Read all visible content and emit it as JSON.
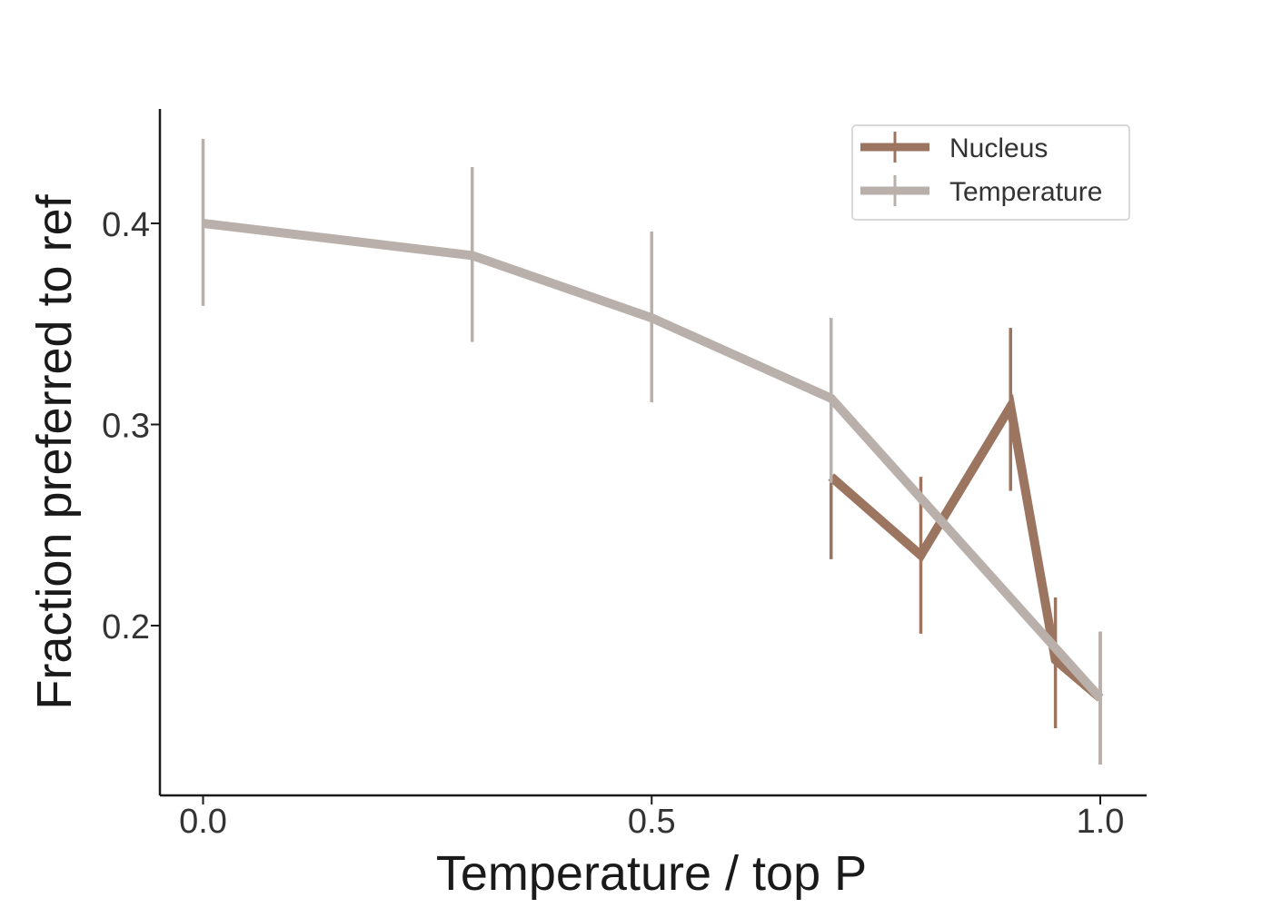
{
  "chart_data": {
    "type": "line",
    "title": "",
    "xlabel": "Temperature / top P",
    "ylabel": "Fraction preferred to ref",
    "xlim": [
      -0.05,
      1.05
    ],
    "ylim": [
      0.12,
      0.46
    ],
    "xticks": [
      0.0,
      0.5,
      1.0
    ],
    "xtick_labels": [
      "0.0",
      "0.5",
      "1.0"
    ],
    "yticks": [
      0.2,
      0.3,
      0.4
    ],
    "ytick_labels": [
      "0.2",
      "0.3",
      "0.4"
    ],
    "grid": false,
    "legend_position": "top-right",
    "series": [
      {
        "name": "Nucleus",
        "color": "#9b7560",
        "x": [
          0.7,
          0.8,
          0.9,
          0.95,
          1.0
        ],
        "y": [
          0.274,
          0.235,
          0.309,
          0.183,
          0.164
        ],
        "err_low": [
          0.233,
          0.196,
          0.267,
          0.149,
          0.131
        ],
        "err_high": [
          0.315,
          0.274,
          0.348,
          0.214,
          0.197
        ]
      },
      {
        "name": "Temperature",
        "color": "#bab0ab",
        "x": [
          0.0,
          0.3,
          0.5,
          0.7,
          1.0
        ],
        "y": [
          0.4,
          0.384,
          0.353,
          0.313,
          0.164
        ],
        "err_low": [
          0.359,
          0.341,
          0.311,
          0.271,
          0.131
        ],
        "err_high": [
          0.442,
          0.428,
          0.396,
          0.353,
          0.197
        ]
      }
    ]
  }
}
